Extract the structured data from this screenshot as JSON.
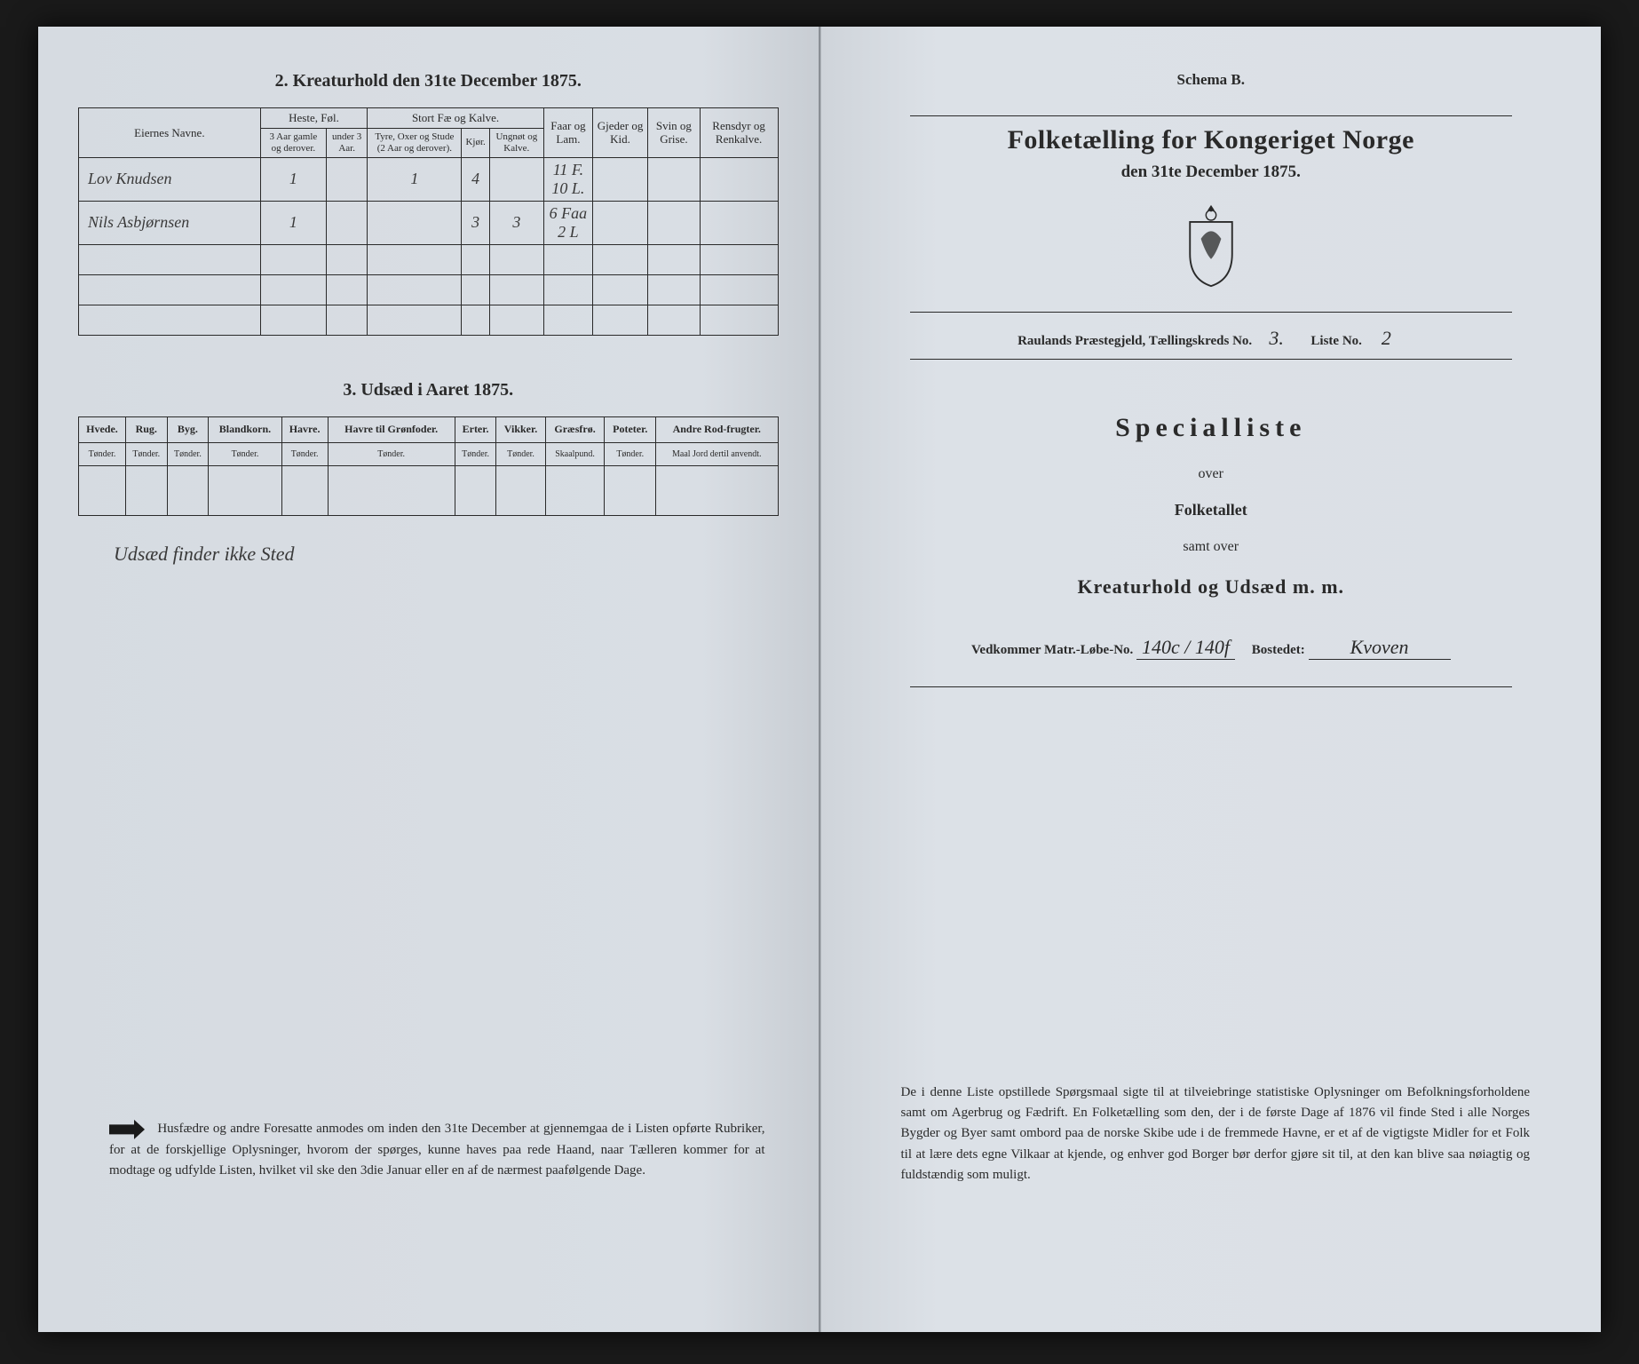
{
  "left": {
    "section2": {
      "title": "2.  Kreaturhold den 31te December 1875.",
      "headers": {
        "name": "Eiernes Navne.",
        "group_heste": "Heste, Føl.",
        "group_stort": "Stort Fæ og Kalve.",
        "heste_a": "3 Aar gamle og derover.",
        "heste_b": "under 3 Aar.",
        "stort_a": "Tyre, Oxer og Stude (2 Aar og derover).",
        "stort_b": "Kjør.",
        "stort_c": "Ungnøt og Kalve.",
        "faar": "Faar og Lam.",
        "gjeder": "Gjeder og Kid.",
        "svin": "Svin og Grise.",
        "rensdyr": "Rensdyr og Renkalve."
      },
      "rows": [
        {
          "name": "Lov Knudsen",
          "heste_a": "1",
          "stort_a": "1",
          "stort_b": "4",
          "faar": "11 F.\n10 L."
        },
        {
          "name": "Nils Asbjørnsen",
          "heste_a": "1",
          "stort_b": "3",
          "stort_c": "3",
          "faar": "6 Faa\n2 L"
        }
      ]
    },
    "section3": {
      "title": "3.  Udsæd i Aaret 1875.",
      "columns": [
        {
          "h": "Hvede.",
          "s": "Tønder."
        },
        {
          "h": "Rug.",
          "s": "Tønder."
        },
        {
          "h": "Byg.",
          "s": "Tønder."
        },
        {
          "h": "Blandkorn.",
          "s": "Tønder."
        },
        {
          "h": "Havre.",
          "s": "Tønder."
        },
        {
          "h": "Havre til Grønfoder.",
          "s": "Tønder."
        },
        {
          "h": "Erter.",
          "s": "Tønder."
        },
        {
          "h": "Vikker.",
          "s": "Tønder."
        },
        {
          "h": "Græsfrø.",
          "s": "Skaalpund."
        },
        {
          "h": "Poteter.",
          "s": "Tønder."
        },
        {
          "h": "Andre Rod-frugter.",
          "s": "Maal Jord dertil anvendt."
        }
      ],
      "note": "Udsæd finder ikke Sted"
    },
    "footnote": "Husfædre og andre Foresatte anmodes om inden den 31te December at gjennemgaa de i Listen opførte Rubriker, for at de forskjellige Oplysninger, hvorom der spørges, kunne haves paa rede Haand, naar Tælleren kommer for at modtage og udfylde Listen, hvilket vil ske den 3die Januar eller en af de nærmest paafølgende Dage."
  },
  "right": {
    "schema": "Schema B.",
    "title": "Folketælling for Kongeriget Norge",
    "date": "den 31te December 1875.",
    "district_prefix": "Raulands Præstegjeld,  Tællingskreds No.",
    "district_no": "3.",
    "liste_label": "Liste No.",
    "liste_no": "2",
    "special": "Specialliste",
    "lines": {
      "over1": "over",
      "folketallet": "Folketallet",
      "samt": "samt over",
      "kreatur": "Kreaturhold og Udsæd m. m."
    },
    "matr": {
      "label1": "Vedkommer Matr.-Løbe-No.",
      "val1": "140c / 140f",
      "label2": "Bostedet:",
      "val2": "Kvoven"
    },
    "footnote": "De i denne Liste opstillede Spørgsmaal sigte til at tilveiebringe statistiske Oplysninger om Befolkningsforholdene samt om Agerbrug og Fædrift.  En Folketælling som den, der i de første Dage af 1876 vil finde Sted i alle Norges Bygder og Byer samt ombord paa de norske Skibe ude i de fremmede Havne, er et af de vigtigste Midler for et Folk til at lære dets egne Vilkaar at kjende, og enhver god Borger bør derfor gjøre sit til, at den kan blive saa nøiagtig og fuldstændig som muligt."
  }
}
